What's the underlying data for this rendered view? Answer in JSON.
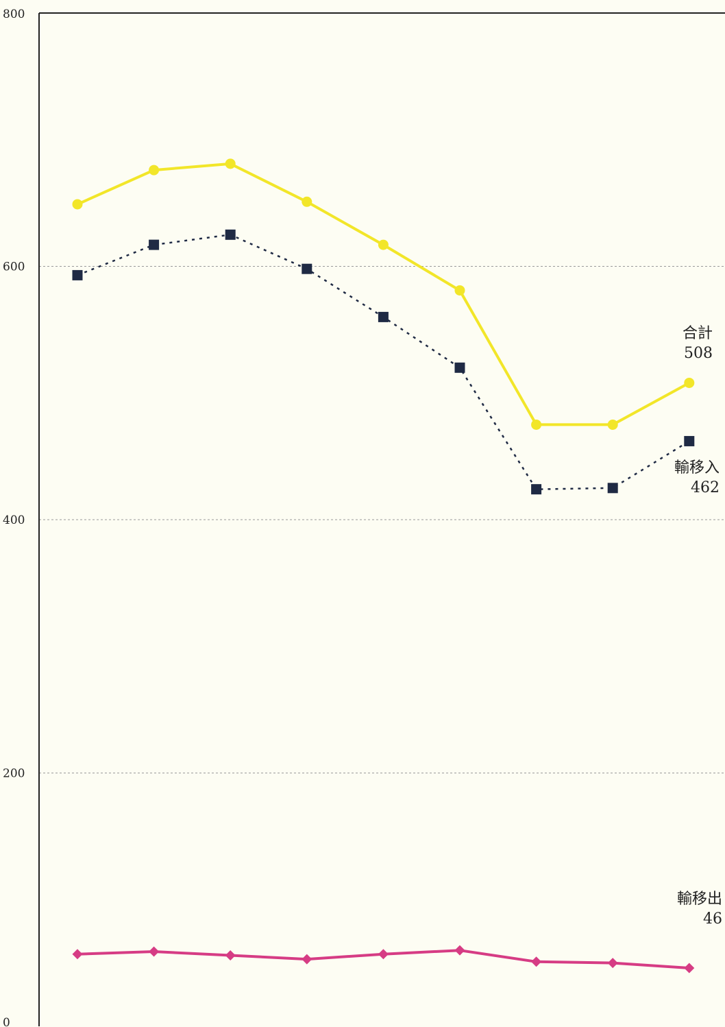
{
  "chart_data": {
    "type": "line",
    "title": "",
    "xlabel": "",
    "ylabel": "",
    "ylim": [
      0,
      800
    ],
    "yticks": [
      0,
      200,
      400,
      600,
      800
    ],
    "ytick_labels": [
      "0",
      "200",
      "400",
      "600",
      "800"
    ],
    "grid": true,
    "x": [
      1,
      2,
      3,
      4,
      5,
      6,
      7,
      8,
      9
    ],
    "series": [
      {
        "name": "合計",
        "values": [
          649,
          676,
          681,
          651,
          617,
          581,
          475,
          475,
          508
        ],
        "color": "#f2e629",
        "style": "solid",
        "marker": "circle",
        "end_label": "合計",
        "end_value_label": "508"
      },
      {
        "name": "輸移入",
        "values": [
          593,
          617,
          625,
          598,
          560,
          520,
          424,
          425,
          462
        ],
        "color": "#1f2a44",
        "style": "dotted",
        "marker": "square",
        "end_label": "輸移入",
        "end_value_label": "462"
      },
      {
        "name": "輸移出",
        "values": [
          57,
          59,
          56,
          53,
          57,
          60,
          51,
          50,
          46
        ],
        "color": "#d63c84",
        "style": "solid",
        "marker": "diamond",
        "end_label": "輸移出",
        "end_value_label": "46"
      }
    ]
  }
}
